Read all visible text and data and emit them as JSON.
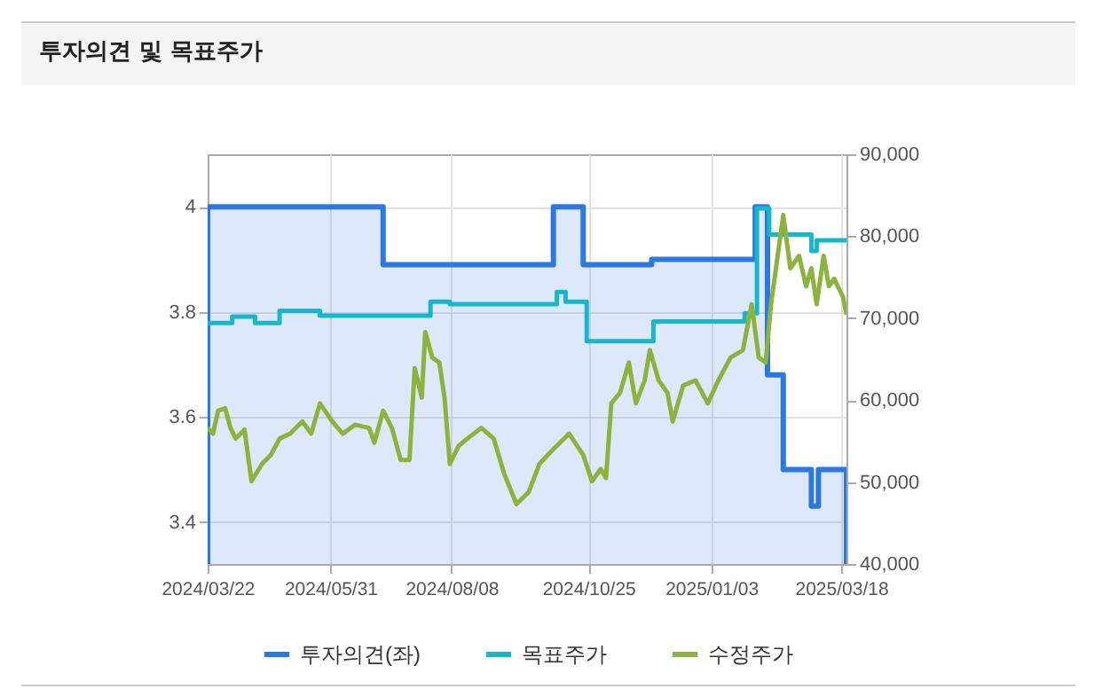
{
  "chart_data": {
    "type": "line",
    "title": "투자의견 및 목표주가",
    "xlim": [
      "2024-03-22",
      "2025-03-21"
    ],
    "xticks": [
      {
        "value": "2024-03-22",
        "label": "2024/03/22"
      },
      {
        "value": "2024-05-31",
        "label": "2024/05/31"
      },
      {
        "value": "2024-08-08",
        "label": "2024/08/08"
      },
      {
        "value": "2024-10-25",
        "label": "2024/10/25"
      },
      {
        "value": "2025-01-03",
        "label": "2025/01/03"
      },
      {
        "value": "2025-03-18",
        "label": "2025/03/18"
      }
    ],
    "ylim": [
      3.32,
      4.1
    ],
    "yticks": [
      3.4,
      3.6,
      3.8,
      4
    ],
    "y2lim": [
      40000,
      90000
    ],
    "y2ticks": [
      {
        "value": 40000,
        "label": "40,000"
      },
      {
        "value": 50000,
        "label": "50,000"
      },
      {
        "value": 60000,
        "label": "60,000"
      },
      {
        "value": 70000,
        "label": "70,000"
      },
      {
        "value": 80000,
        "label": "80,000"
      },
      {
        "value": 90000,
        "label": "90,000"
      }
    ],
    "grid": true,
    "legend": "bottom",
    "series": [
      {
        "name": "투자의견(좌)",
        "type": "area",
        "color": "#2b78e4",
        "x": [
          "2024-03-22",
          "2024-06-30",
          "2024-10-05",
          "2024-10-22",
          "2024-11-30",
          "2025-01-28",
          "2025-02-04",
          "2025-02-13",
          "2025-03-01",
          "2025-03-05",
          "2025-03-21"
        ],
        "values": [
          4,
          3.89,
          4,
          3.89,
          3.9,
          4,
          3.68,
          3.5,
          3.43,
          3.5,
          3.5
        ]
      },
      {
        "name": "목표주가",
        "type": "step",
        "axis": "y2",
        "color": "#17b6c9",
        "x": [
          "2024-03-22",
          "2024-04-05",
          "2024-04-18",
          "2024-05-02",
          "2024-05-25",
          "2024-07-27",
          "2024-08-07",
          "2024-10-07",
          "2024-10-12",
          "2024-10-24",
          "2024-12-01",
          "2025-01-22",
          "2025-01-29",
          "2025-02-05",
          "2025-03-01",
          "2025-03-04",
          "2025-03-21"
        ],
        "values": [
          69400,
          70200,
          69400,
          70900,
          70300,
          72000,
          71700,
          73200,
          72000,
          67200,
          69600,
          70600,
          83400,
          80200,
          78200,
          79500,
          79500
        ]
      },
      {
        "name": "수정주가",
        "axis": "y2",
        "color": "#8cb43c",
        "x": [
          "2024-03-22",
          "2024-03-25",
          "2024-03-28",
          "2024-04-01",
          "2024-04-04",
          "2024-04-07",
          "2024-04-12",
          "2024-04-16",
          "2024-04-22",
          "2024-04-27",
          "2024-05-02",
          "2024-05-08",
          "2024-05-15",
          "2024-05-20",
          "2024-05-25",
          "2024-06-01",
          "2024-06-07",
          "2024-06-14",
          "2024-06-22",
          "2024-06-25",
          "2024-06-30",
          "2024-07-05",
          "2024-07-10",
          "2024-07-15",
          "2024-07-18",
          "2024-07-22",
          "2024-07-24",
          "2024-07-28",
          "2024-08-01",
          "2024-08-04",
          "2024-08-07",
          "2024-08-12",
          "2024-08-17",
          "2024-08-25",
          "2024-09-01",
          "2024-09-07",
          "2024-09-14",
          "2024-09-21",
          "2024-09-27",
          "2024-10-04",
          "2024-10-14",
          "2024-10-22",
          "2024-10-27",
          "2024-11-01",
          "2024-11-04",
          "2024-11-07",
          "2024-11-12",
          "2024-11-17",
          "2024-11-21",
          "2024-11-26",
          "2024-11-29",
          "2024-12-04",
          "2024-12-09",
          "2024-12-12",
          "2024-12-18",
          "2024-12-25",
          "2025-01-01",
          "2025-01-07",
          "2025-01-14",
          "2025-01-21",
          "2025-01-26",
          "2025-01-30",
          "2025-02-03",
          "2025-02-06",
          "2025-02-13",
          "2025-02-17",
          "2025-02-22",
          "2025-02-26",
          "2025-03-01",
          "2025-03-04",
          "2025-03-08",
          "2025-03-11",
          "2025-03-14",
          "2025-03-19",
          "2025-03-21"
        ],
        "values": [
          56600,
          55900,
          58700,
          59000,
          56600,
          55300,
          56400,
          50100,
          52200,
          53300,
          55300,
          55900,
          57400,
          55900,
          59600,
          57400,
          55900,
          57000,
          56600,
          54800,
          58700,
          56600,
          52700,
          52700,
          63900,
          60300,
          68300,
          65200,
          64600,
          60300,
          52200,
          54400,
          55300,
          56600,
          55300,
          51000,
          47300,
          48800,
          52200,
          53800,
          55900,
          53300,
          50100,
          51600,
          50500,
          59600,
          60900,
          64600,
          59600,
          62400,
          66100,
          62400,
          60900,
          57400,
          61800,
          62400,
          59600,
          62400,
          65200,
          66100,
          71700,
          65200,
          64600,
          71700,
          82600,
          76100,
          77600,
          73900,
          76100,
          71700,
          77600,
          73900,
          74800,
          72600,
          70400
        ]
      }
    ]
  }
}
